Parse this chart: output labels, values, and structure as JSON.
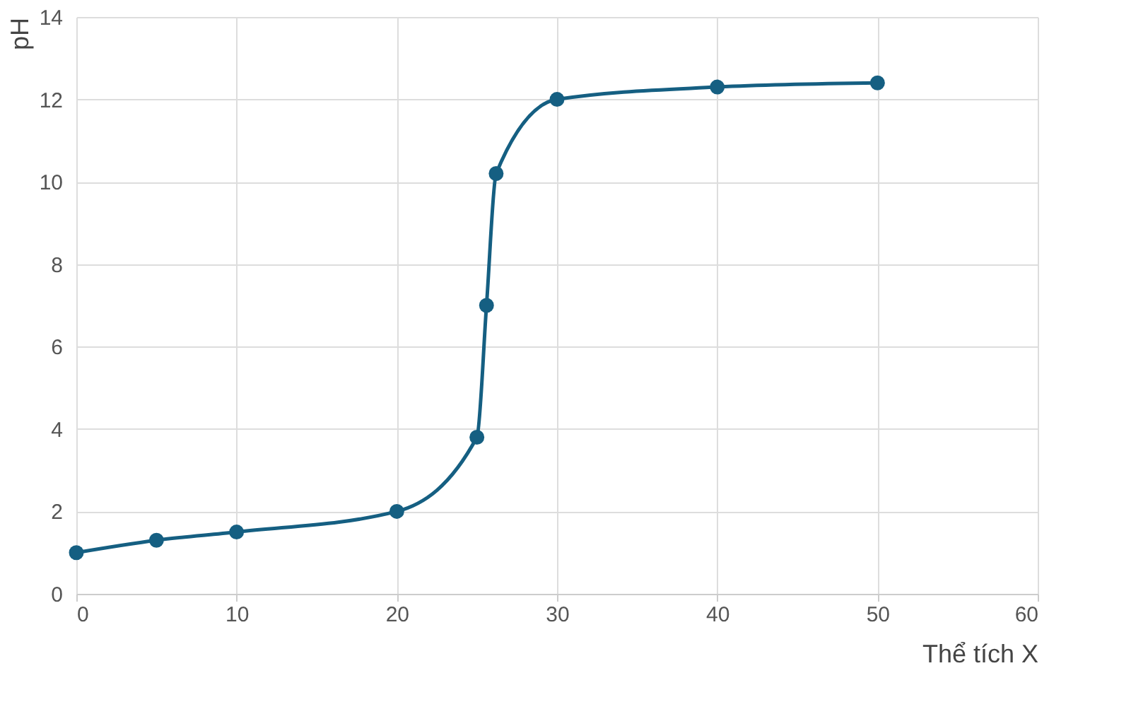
{
  "chart_data": {
    "type": "line",
    "xlabel": "Thể tích X",
    "ylabel": "pH",
    "x": [
      0,
      5,
      10,
      20,
      25,
      25.6,
      26.2,
      30,
      40,
      50
    ],
    "series": [
      {
        "color": "#155f82",
        "values": [
          1,
          1.3,
          1.5,
          2,
          3.8,
          7,
          10.2,
          12,
          12.3,
          12.4
        ]
      }
    ],
    "xlim": [
      0,
      60
    ],
    "xticks": [
      0,
      10,
      20,
      30,
      40,
      50,
      60
    ],
    "ylim": [
      0,
      14
    ],
    "yticks": [
      0,
      2,
      4,
      6,
      8,
      10,
      12,
      14
    ],
    "grid": true,
    "marker": "circle",
    "line_style": "solid"
  }
}
